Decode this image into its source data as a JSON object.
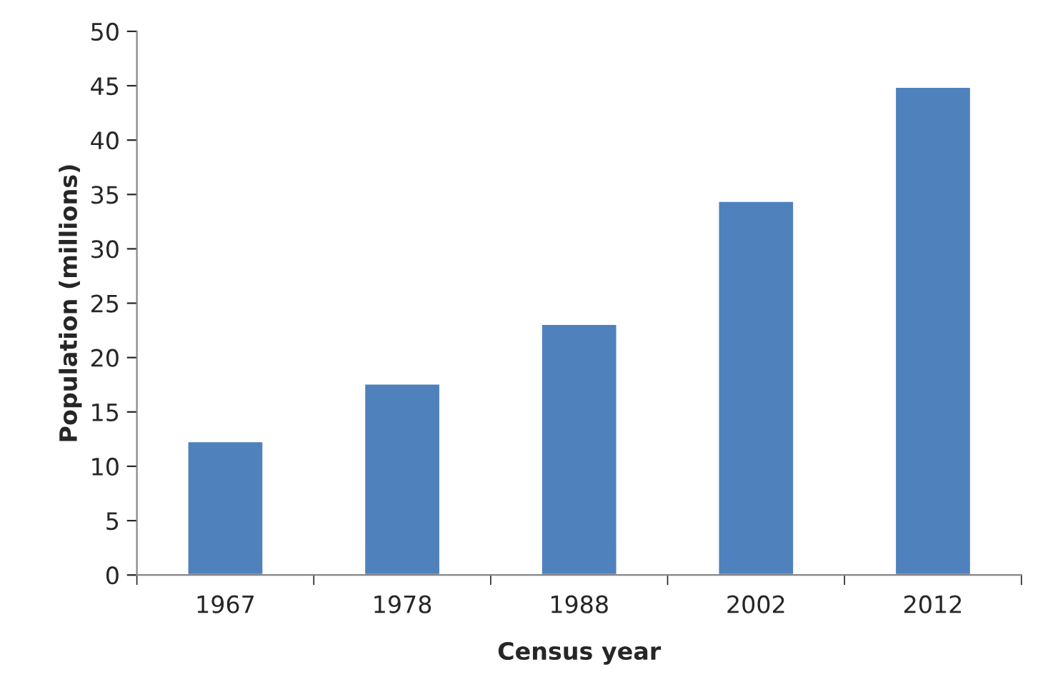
{
  "chart_data": {
    "type": "bar",
    "xlabel": "Census year",
    "ylabel": "Population (millions)",
    "categories": [
      "1967",
      "1978",
      "1988",
      "2002",
      "2012"
    ],
    "series": [
      {
        "color": "#4f81bd",
        "values": [
          12.3,
          17.6,
          23.1,
          34.4,
          44.9
        ]
      }
    ],
    "ylim": [
      0,
      50
    ],
    "yticks": [
      0,
      5,
      10,
      15,
      20,
      25,
      30,
      35,
      40,
      45,
      50
    ],
    "grid": false,
    "legend": false
  }
}
